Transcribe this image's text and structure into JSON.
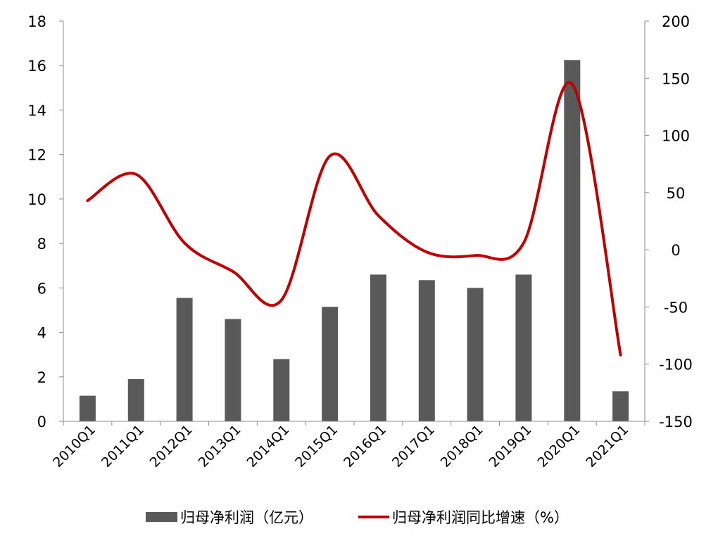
{
  "chart_data": {
    "type": "bar+line",
    "categories": [
      "2010Q1",
      "2011Q1",
      "2012Q1",
      "2013Q1",
      "2014Q1",
      "2015Q1",
      "2016Q1",
      "2017Q1",
      "2018Q1",
      "2019Q1",
      "2020Q1",
      "2021Q1"
    ],
    "series": [
      {
        "name": "归母净利润（亿元）",
        "type": "bar",
        "axis": "left",
        "color": "#595959",
        "values": [
          1.15,
          1.9,
          5.55,
          4.6,
          2.8,
          5.15,
          6.6,
          6.35,
          6.0,
          6.6,
          16.25,
          1.35
        ]
      },
      {
        "name": "归母净利润同比增速（%）",
        "type": "line",
        "axis": "right",
        "color": "#C00000",
        "smooth": true,
        "values": [
          43,
          66,
          6,
          -19,
          -44,
          82,
          30,
          -2,
          -5,
          6,
          145,
          -92
        ]
      }
    ],
    "y_left": {
      "min": 0,
      "max": 18,
      "ticks": [
        0,
        2,
        4,
        6,
        8,
        10,
        12,
        14,
        16,
        18
      ]
    },
    "y_right": {
      "min": -150,
      "max": 200,
      "ticks": [
        -150,
        -100,
        -50,
        0,
        50,
        100,
        150,
        200
      ]
    },
    "grid": false,
    "legend_position": "bottom",
    "title": "",
    "xlabel": "",
    "ylabel": ""
  }
}
